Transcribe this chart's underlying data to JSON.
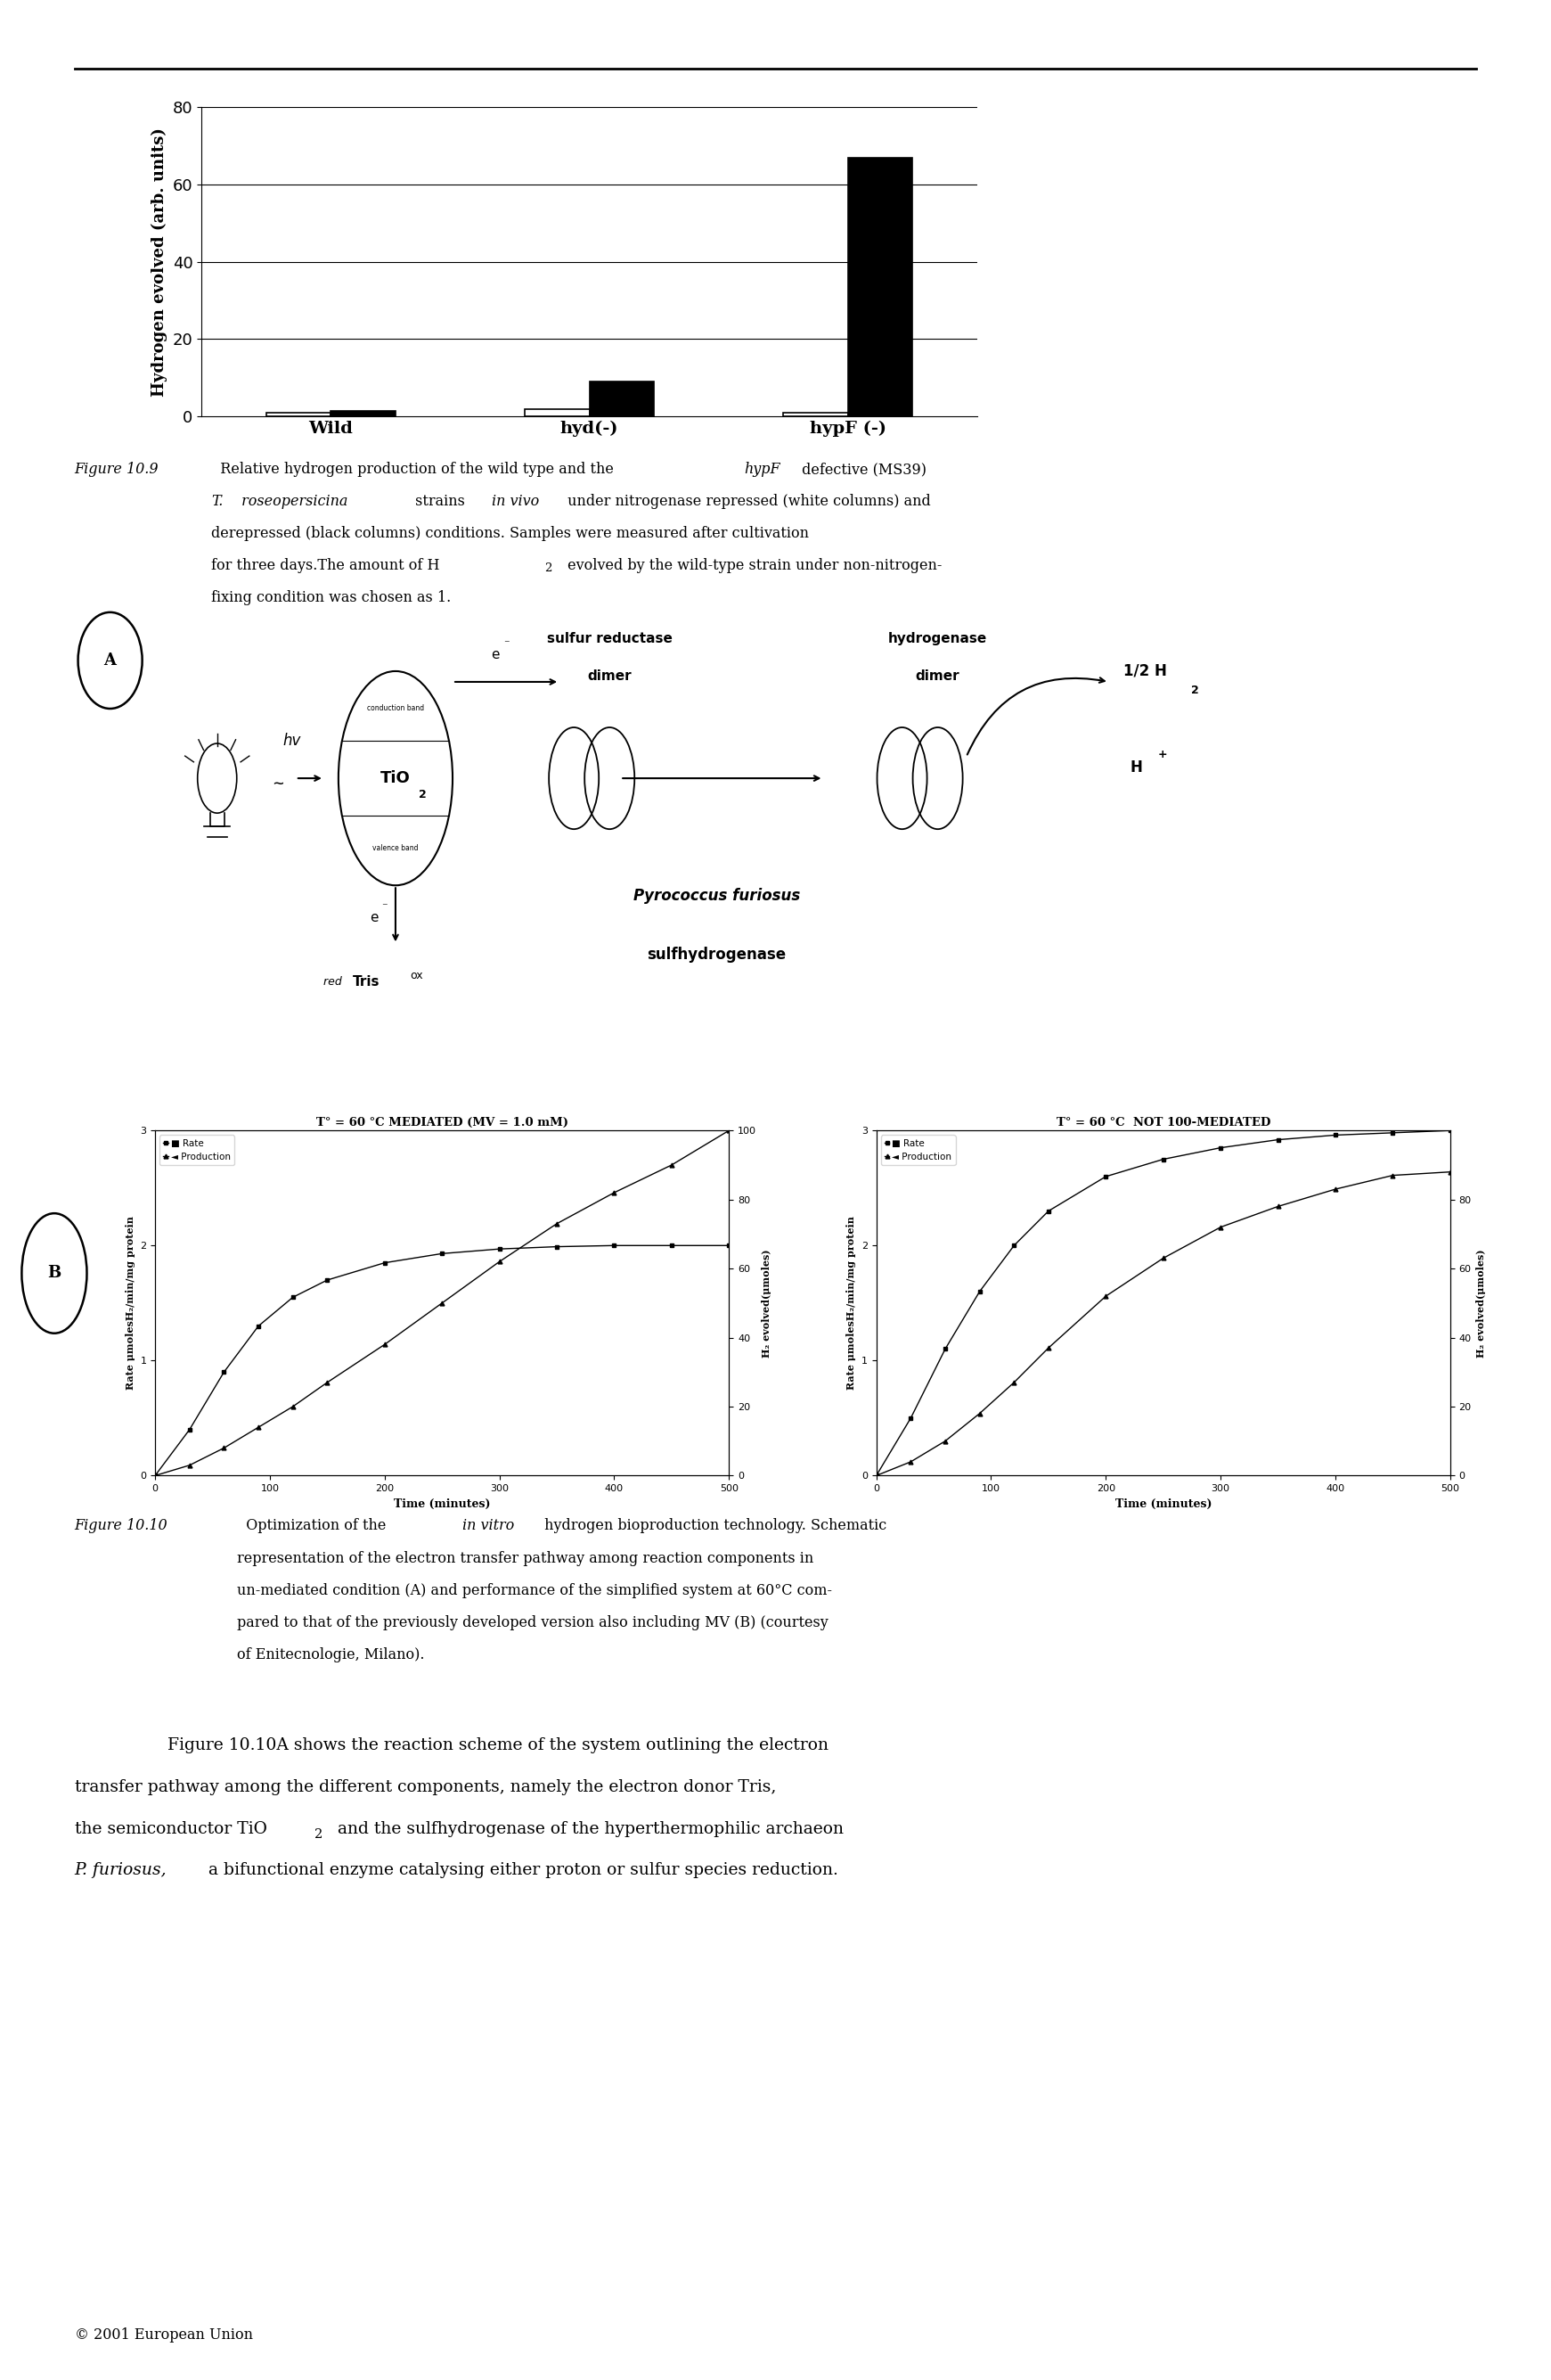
{
  "bar_chart": {
    "categories": [
      "Wild",
      "hyd(-)",
      "hypF (-)"
    ],
    "white_bars": [
      1.0,
      2.0,
      1.0
    ],
    "black_bars": [
      1.5,
      9.0,
      67.0
    ],
    "ylabel": "Hydrogen evolved (arb. units)",
    "ylim": [
      0,
      80
    ],
    "yticks": [
      0,
      20,
      40,
      60,
      80
    ],
    "bar_width": 0.25,
    "white_color": "#ffffff",
    "black_color": "#000000",
    "edge_color": "#000000"
  },
  "background_color": "#ffffff",
  "copyright": "© 2001 European Union"
}
